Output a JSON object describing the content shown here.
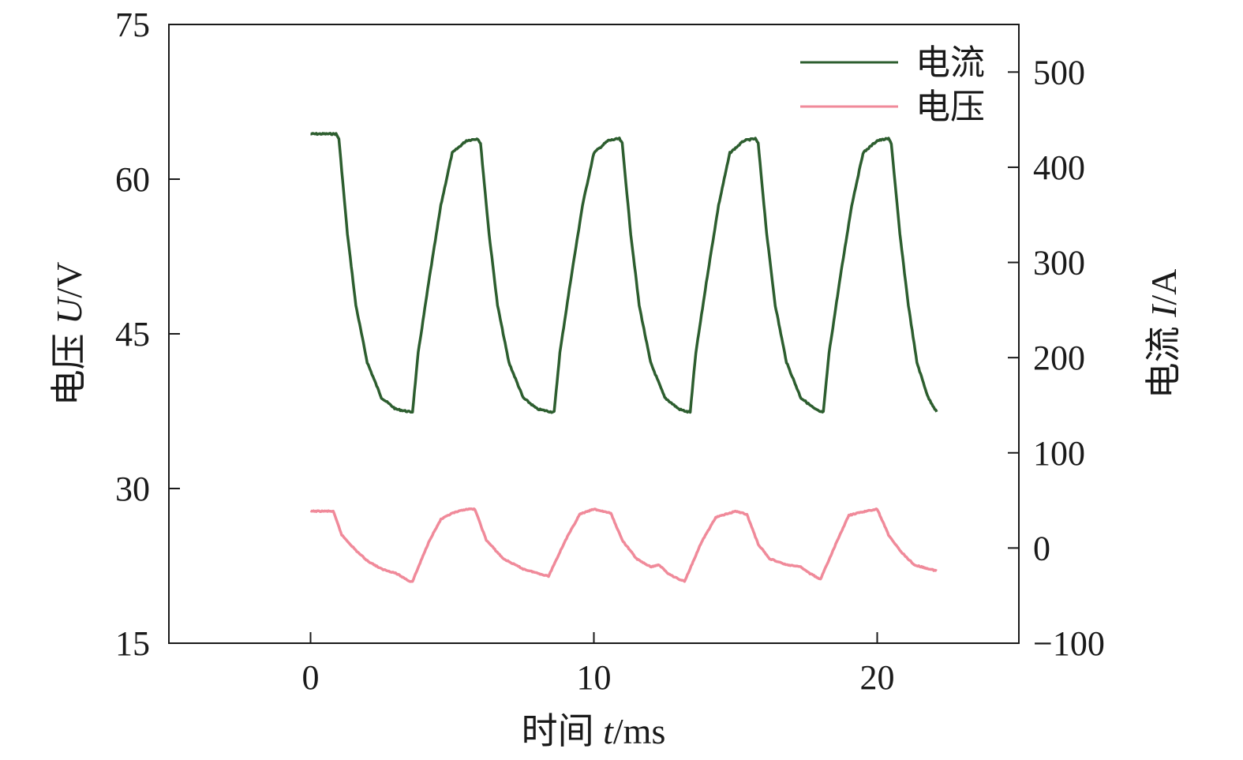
{
  "chart_data": {
    "type": "line",
    "x": {
      "label_prefix": "时间 ",
      "label_var": "t",
      "label_unit": "/ms",
      "range": [
        -5,
        25
      ],
      "ticks": [
        0,
        10,
        20
      ],
      "tick_labels": [
        "0",
        "10",
        "20"
      ]
    },
    "y_left": {
      "label_prefix": "电压 ",
      "label_var": "U",
      "label_unit": "/V",
      "range": [
        15,
        75
      ],
      "ticks": [
        15,
        30,
        45,
        60,
        75
      ],
      "tick_labels": [
        "15",
        "30",
        "45",
        "60",
        "75"
      ]
    },
    "y_right": {
      "label_prefix": "电流 ",
      "label_var": "I",
      "label_unit": "/A",
      "range": [
        -100,
        550
      ],
      "ticks": [
        -100,
        0,
        100,
        200,
        300,
        400,
        500
      ],
      "tick_labels": [
        "−100",
        "0",
        "100",
        "200",
        "300",
        "400",
        "500"
      ]
    },
    "legend_position": "top-right",
    "grid": false,
    "series": [
      {
        "name": "电流",
        "axis": "right",
        "color": "#2d5e2f",
        "points": [
          [
            0,
            435
          ],
          [
            0.9,
            435
          ],
          [
            1.0,
            430
          ],
          [
            1.3,
            330
          ],
          [
            1.6,
            255
          ],
          [
            2.0,
            195
          ],
          [
            2.5,
            158
          ],
          [
            3.0,
            146
          ],
          [
            3.5,
            143
          ],
          [
            3.6,
            143
          ],
          [
            3.8,
            205
          ],
          [
            4.2,
            285
          ],
          [
            4.6,
            360
          ],
          [
            5.0,
            415
          ],
          [
            5.5,
            428
          ],
          [
            5.9,
            430
          ],
          [
            6.0,
            425
          ],
          [
            6.3,
            330
          ],
          [
            6.6,
            255
          ],
          [
            7.0,
            195
          ],
          [
            7.5,
            158
          ],
          [
            8.0,
            146
          ],
          [
            8.5,
            143
          ],
          [
            8.6,
            143
          ],
          [
            8.8,
            205
          ],
          [
            9.2,
            285
          ],
          [
            9.6,
            360
          ],
          [
            10.0,
            415
          ],
          [
            10.5,
            428
          ],
          [
            10.9,
            430
          ],
          [
            11.0,
            425
          ],
          [
            11.3,
            330
          ],
          [
            11.6,
            255
          ],
          [
            12.0,
            195
          ],
          [
            12.5,
            158
          ],
          [
            13.0,
            146
          ],
          [
            13.3,
            143
          ],
          [
            13.4,
            143
          ],
          [
            13.6,
            205
          ],
          [
            14.0,
            285
          ],
          [
            14.4,
            360
          ],
          [
            14.8,
            415
          ],
          [
            15.3,
            428
          ],
          [
            15.7,
            430
          ],
          [
            15.8,
            425
          ],
          [
            16.1,
            330
          ],
          [
            16.4,
            255
          ],
          [
            16.8,
            195
          ],
          [
            17.3,
            158
          ],
          [
            17.8,
            146
          ],
          [
            18.0,
            143
          ],
          [
            18.1,
            143
          ],
          [
            18.3,
            205
          ],
          [
            18.7,
            285
          ],
          [
            19.1,
            360
          ],
          [
            19.5,
            415
          ],
          [
            20.0,
            428
          ],
          [
            20.4,
            430
          ],
          [
            20.5,
            425
          ],
          [
            20.8,
            330
          ],
          [
            21.1,
            255
          ],
          [
            21.4,
            195
          ],
          [
            21.8,
            158
          ],
          [
            22.1,
            143
          ]
        ]
      },
      {
        "name": "电压",
        "axis": "left",
        "color": "#f08a9a",
        "points": [
          [
            0,
            27.8
          ],
          [
            0.8,
            27.8
          ],
          [
            1.1,
            25.5
          ],
          [
            1.6,
            24.0
          ],
          [
            2.0,
            23.0
          ],
          [
            2.5,
            22.2
          ],
          [
            3.0,
            21.8
          ],
          [
            3.5,
            21.0
          ],
          [
            3.6,
            21.0
          ],
          [
            4.2,
            25.0
          ],
          [
            4.6,
            27.0
          ],
          [
            5.0,
            27.6
          ],
          [
            5.5,
            28.0
          ],
          [
            5.8,
            28.0
          ],
          [
            6.2,
            25.0
          ],
          [
            6.8,
            23.2
          ],
          [
            7.5,
            22.2
          ],
          [
            8.0,
            21.8
          ],
          [
            8.4,
            21.5
          ],
          [
            9.0,
            25.0
          ],
          [
            9.5,
            27.5
          ],
          [
            10.0,
            28.0
          ],
          [
            10.6,
            27.6
          ],
          [
            11.0,
            25.0
          ],
          [
            11.5,
            23.2
          ],
          [
            12.0,
            22.4
          ],
          [
            12.3,
            22.6
          ],
          [
            12.6,
            21.8
          ],
          [
            13.0,
            21.2
          ],
          [
            13.2,
            21.0
          ],
          [
            13.8,
            24.8
          ],
          [
            14.3,
            27.2
          ],
          [
            15.0,
            27.8
          ],
          [
            15.4,
            27.5
          ],
          [
            15.8,
            24.6
          ],
          [
            16.2,
            23.2
          ],
          [
            16.8,
            22.6
          ],
          [
            17.3,
            22.4
          ],
          [
            17.6,
            21.8
          ],
          [
            18.0,
            21.2
          ],
          [
            18.6,
            25.0
          ],
          [
            19.0,
            27.4
          ],
          [
            19.6,
            27.8
          ],
          [
            20.0,
            28.0
          ],
          [
            20.4,
            25.5
          ],
          [
            20.8,
            24.0
          ],
          [
            21.3,
            22.6
          ],
          [
            22.1,
            22.0
          ]
        ]
      }
    ]
  }
}
